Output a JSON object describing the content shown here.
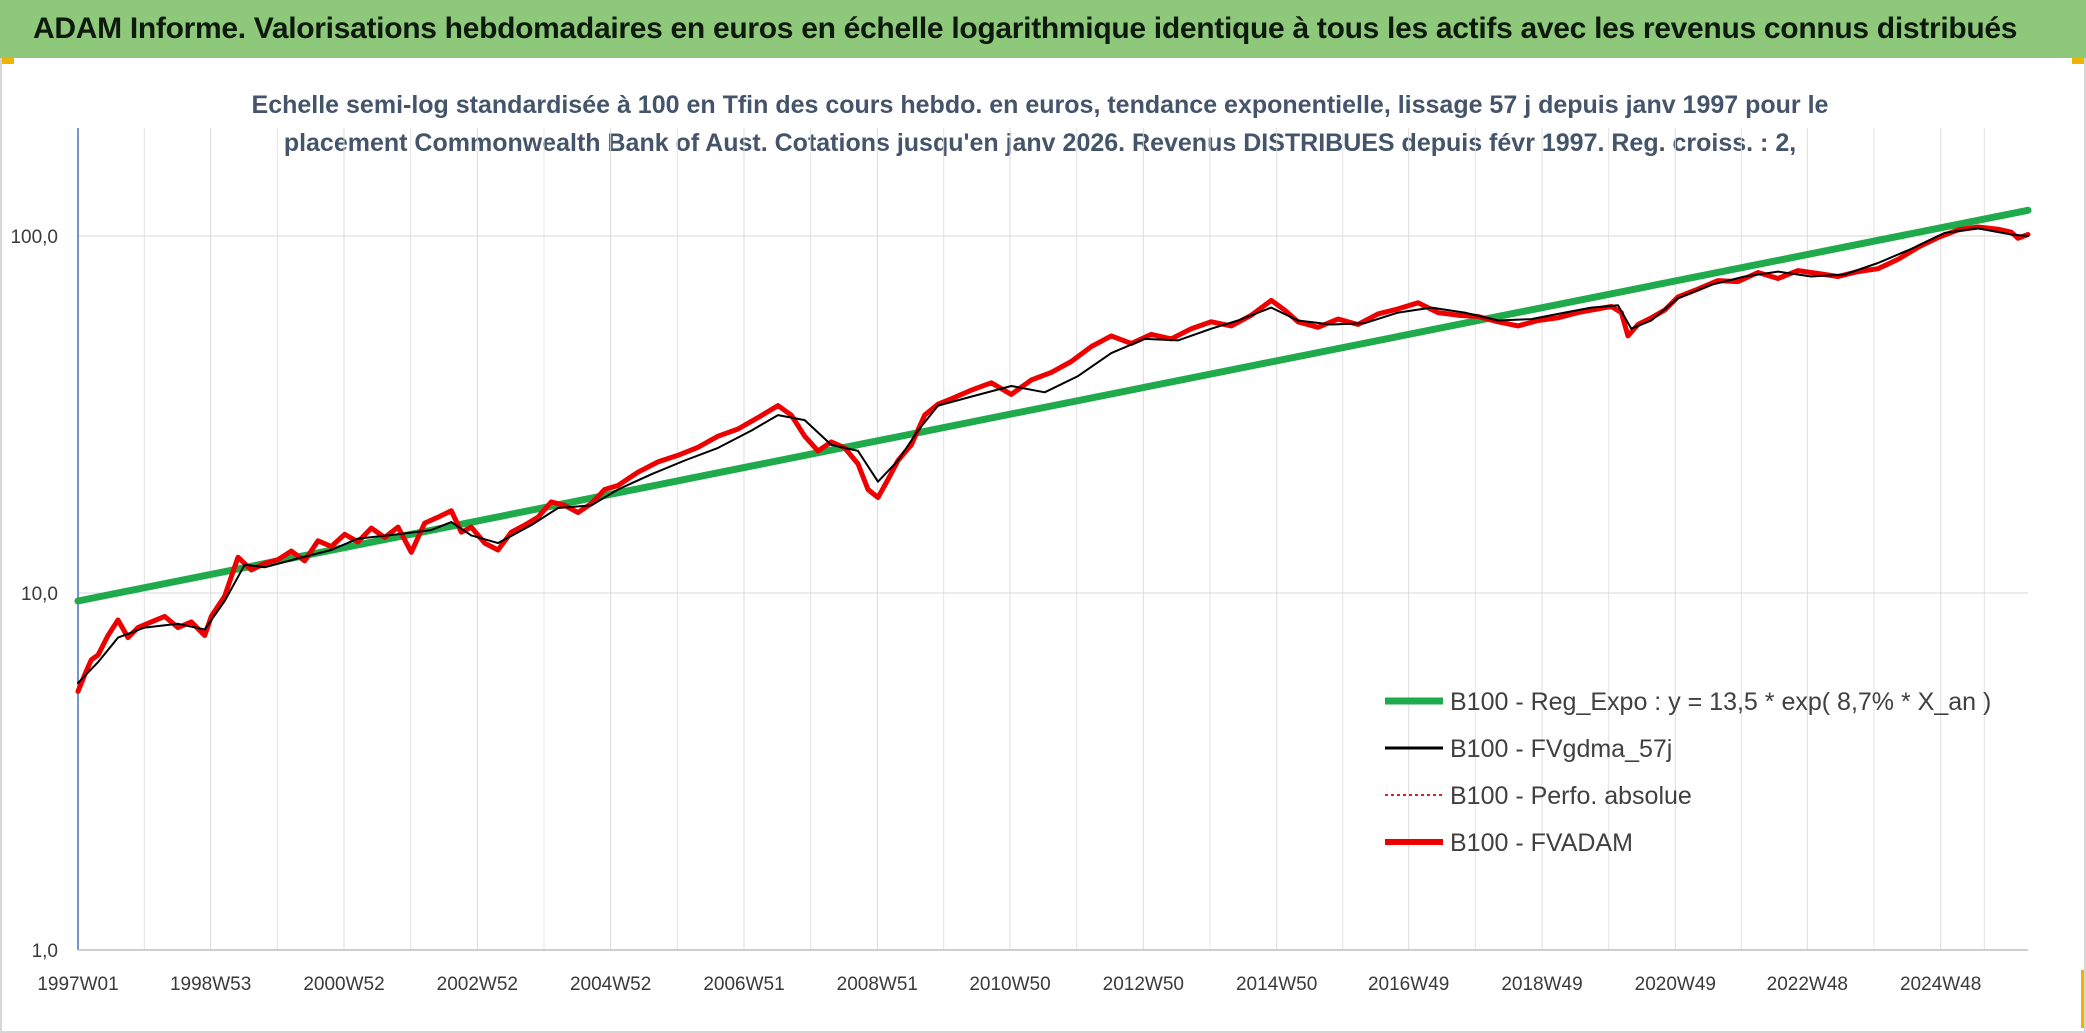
{
  "header": {
    "title": "ADAM Informe. Valorisations hebdomadaires en euros en échelle logarithmique identique à tous les actifs avec les revenus connus distribués"
  },
  "chart_data": {
    "type": "line",
    "subtitle_lines": [
      "Echelle semi-log standardisée à 100 en Tfin des cours hebdo. en euros, tendance exponentielle, lissage 57 j depuis janv 1997 pour le",
      "placement Commonwealth Bank of Aust. Cotations jusqu'en janv 2026. Revenus DISTRIBUES depuis févr 1997. Reg. croiss. : 2,"
    ],
    "y_scale": "log",
    "ylim": [
      1,
      180
    ],
    "y_ticks": [
      {
        "value": 1,
        "label": "1,0"
      },
      {
        "value": 10,
        "label": "10,0"
      },
      {
        "value": 100,
        "label": "100,0"
      }
    ],
    "x_range": [
      1997.0,
      2026.25
    ],
    "x_ticks": [
      {
        "x": 1997.0,
        "label": "1997W01"
      },
      {
        "x": 1998.99,
        "label": "1998W53"
      },
      {
        "x": 2000.99,
        "label": "2000W52"
      },
      {
        "x": 2002.99,
        "label": "2002W52"
      },
      {
        "x": 2004.99,
        "label": "2004W52"
      },
      {
        "x": 2006.99,
        "label": "2006W51"
      },
      {
        "x": 2008.99,
        "label": "2008W51"
      },
      {
        "x": 2010.98,
        "label": "2010W50"
      },
      {
        "x": 2012.98,
        "label": "2012W50"
      },
      {
        "x": 2014.98,
        "label": "2014W50"
      },
      {
        "x": 2016.96,
        "label": "2016W49"
      },
      {
        "x": 2018.96,
        "label": "2018W49"
      },
      {
        "x": 2020.96,
        "label": "2020W49"
      },
      {
        "x": 2022.94,
        "label": "2022W48"
      },
      {
        "x": 2024.94,
        "label": "2024W48"
      }
    ],
    "grid": "vertical and horizontal",
    "legend_position": "bottom-right",
    "series": [
      {
        "name": "B100 - Reg_Expo : y = 13,5 * exp( 8,7% *  X_an )",
        "color": "#1faa4b",
        "style": "solid-thick",
        "x": [
          1997.0,
          2026.25
        ],
        "y": [
          9.5,
          118
        ]
      },
      {
        "name": "B100 - FVgdma_57j",
        "color": "#000000",
        "style": "solid-thin",
        "x": [
          1997.0,
          1997.3,
          1997.6,
          1998.0,
          1998.5,
          1998.9,
          1999.2,
          1999.5,
          1999.8,
          2000.3,
          2000.8,
          2001.2,
          2001.8,
          2002.3,
          2002.6,
          2002.9,
          2003.3,
          2003.8,
          2004.2,
          2004.7,
          2005.1,
          2005.6,
          2006.1,
          2006.6,
          2007.1,
          2007.5,
          2007.9,
          2008.3,
          2008.7,
          2009.0,
          2009.3,
          2009.6,
          2009.9,
          2010.4,
          2011.0,
          2011.5,
          2012.0,
          2012.5,
          2013.0,
          2013.5,
          2014.0,
          2014.4,
          2014.9,
          2015.3,
          2015.8,
          2016.3,
          2016.8,
          2017.3,
          2017.8,
          2018.3,
          2018.8,
          2019.3,
          2019.7,
          2020.1,
          2020.3,
          2020.6,
          2021.0,
          2021.5,
          2022.0,
          2022.5,
          2023.0,
          2023.5,
          2024.0,
          2024.5,
          2025.0,
          2025.5,
          2026.0,
          2026.25
        ],
        "y": [
          5.6,
          6.4,
          7.5,
          8.0,
          8.2,
          7.9,
          9.5,
          12.0,
          11.8,
          12.5,
          13.2,
          14.2,
          14.6,
          15.0,
          15.8,
          14.5,
          13.8,
          15.5,
          17.3,
          17.6,
          19.5,
          21.5,
          23.5,
          25.5,
          28.5,
          31.5,
          30.5,
          26.0,
          25.0,
          20.5,
          23.5,
          28.5,
          33.5,
          35.5,
          38.0,
          36.5,
          40.5,
          47.0,
          51.5,
          51.0,
          55.0,
          58.0,
          63.0,
          58.0,
          56.5,
          57.0,
          61.0,
          63.0,
          61.0,
          58.0,
          58.5,
          61.0,
          63.0,
          64.0,
          55.0,
          58.0,
          67.0,
          73.0,
          77.0,
          79.5,
          77.0,
          78.0,
          84.0,
          92.0,
          102.0,
          105.0,
          101.0,
          100.0
        ]
      },
      {
        "name": "B100 - Perfo. absolue",
        "color": "#e02020",
        "style": "dotted"
      },
      {
        "name": "B100 - FVADAM",
        "color": "#ee0000",
        "style": "solid-thick",
        "x": [
          1997.0,
          1997.1,
          1997.2,
          1997.3,
          1997.45,
          1997.6,
          1997.75,
          1997.9,
          1998.1,
          1998.3,
          1998.5,
          1998.7,
          1998.9,
          1999.0,
          1999.2,
          1999.4,
          1999.6,
          1999.8,
          2000.0,
          2000.2,
          2000.4,
          2000.6,
          2000.8,
          2001.0,
          2001.2,
          2001.4,
          2001.6,
          2001.8,
          2002.0,
          2002.2,
          2002.4,
          2002.6,
          2002.75,
          2002.9,
          2003.1,
          2003.3,
          2003.5,
          2003.7,
          2003.9,
          2004.1,
          2004.3,
          2004.5,
          2004.7,
          2004.9,
          2005.1,
          2005.4,
          2005.7,
          2006.0,
          2006.3,
          2006.6,
          2006.9,
          2007.2,
          2007.5,
          2007.7,
          2007.9,
          2008.1,
          2008.3,
          2008.5,
          2008.7,
          2008.85,
          2009.0,
          2009.15,
          2009.3,
          2009.5,
          2009.7,
          2009.9,
          2010.1,
          2010.4,
          2010.7,
          2011.0,
          2011.3,
          2011.6,
          2011.9,
          2012.2,
          2012.5,
          2012.8,
          2013.1,
          2013.4,
          2013.7,
          2014.0,
          2014.3,
          2014.6,
          2014.9,
          2015.1,
          2015.3,
          2015.6,
          2015.9,
          2016.2,
          2016.5,
          2016.8,
          2017.1,
          2017.4,
          2017.7,
          2018.0,
          2018.3,
          2018.6,
          2018.9,
          2019.2,
          2019.5,
          2019.8,
          2020.0,
          2020.15,
          2020.25,
          2020.4,
          2020.6,
          2020.8,
          2021.0,
          2021.3,
          2021.6,
          2021.9,
          2022.2,
          2022.5,
          2022.8,
          2023.1,
          2023.4,
          2023.7,
          2024.0,
          2024.3,
          2024.6,
          2024.9,
          2025.2,
          2025.5,
          2025.8,
          2026.0,
          2026.1,
          2026.25
        ],
        "y": [
          5.3,
          5.9,
          6.5,
          6.7,
          7.6,
          8.4,
          7.5,
          8.0,
          8.3,
          8.6,
          8.0,
          8.3,
          7.6,
          8.6,
          9.8,
          12.6,
          11.6,
          12.1,
          12.4,
          13.1,
          12.3,
          14.0,
          13.5,
          14.6,
          13.9,
          15.2,
          14.3,
          15.3,
          13.0,
          15.7,
          16.3,
          17.0,
          14.8,
          15.3,
          13.8,
          13.2,
          14.8,
          15.5,
          16.3,
          18.0,
          17.6,
          16.8,
          17.8,
          19.5,
          20.0,
          21.8,
          23.3,
          24.3,
          25.6,
          27.5,
          28.8,
          31.0,
          33.5,
          31.5,
          27.5,
          25.0,
          26.5,
          25.5,
          23.0,
          19.5,
          18.5,
          20.8,
          23.5,
          26.0,
          31.5,
          33.8,
          35.0,
          37.0,
          38.8,
          36.0,
          39.5,
          41.5,
          44.5,
          49.0,
          52.5,
          50.0,
          53.0,
          51.5,
          55.0,
          57.5,
          56.0,
          60.0,
          66.0,
          62.0,
          57.5,
          55.5,
          58.5,
          56.5,
          60.5,
          62.5,
          65.0,
          61.0,
          60.0,
          59.5,
          57.5,
          56.0,
          58.0,
          59.0,
          61.0,
          62.5,
          63.5,
          61.0,
          52.5,
          56.5,
          59.0,
          62.0,
          67.5,
          71.0,
          75.0,
          74.5,
          79.0,
          76.0,
          80.0,
          78.5,
          77.0,
          79.5,
          81.0,
          86.0,
          93.0,
          99.0,
          104.0,
          106.0,
          104.5,
          102.5,
          98.5,
          101.0
        ]
      }
    ]
  }
}
